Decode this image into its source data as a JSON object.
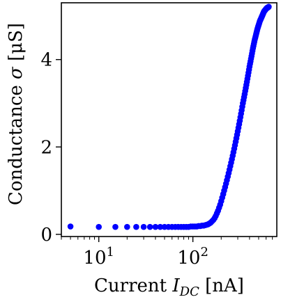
{
  "chart_data": {
    "type": "scatter",
    "xlabel": {
      "prefix": "Current ",
      "var": "I",
      "sub": "DC",
      "suffix": " [nA]"
    },
    "ylabel": {
      "prefix": "Conductance ",
      "var": "σ",
      "suffix": " [μS]"
    },
    "x_scale": "log",
    "xlim": [
      4,
      780
    ],
    "ylim": [
      -0.05,
      5.3
    ],
    "x_ticks": [
      {
        "value": 10,
        "base": "10",
        "exp": "1"
      },
      {
        "value": 100,
        "base": "10",
        "exp": "2"
      }
    ],
    "y_ticks": [
      {
        "value": 0,
        "label": "0"
      },
      {
        "value": 2,
        "label": "2"
      },
      {
        "value": 4,
        "label": "4"
      }
    ],
    "grid": false,
    "marker_color": "#0000ff",
    "series": [
      {
        "x": [
          5,
          10,
          15,
          20,
          25,
          30,
          35,
          40,
          45,
          50,
          55,
          60,
          65,
          70,
          75,
          80,
          85,
          90,
          95,
          100,
          105,
          110,
          115,
          120,
          125,
          130,
          135,
          140,
          145,
          150,
          155,
          160,
          165,
          170,
          175,
          180,
          185,
          190,
          195,
          200,
          205,
          210,
          215,
          220,
          225,
          230,
          235,
          240,
          245,
          250,
          255,
          260,
          265,
          270,
          275,
          280,
          285,
          290,
          295,
          300,
          305,
          310,
          315,
          320,
          325,
          330,
          335,
          340,
          345,
          350,
          355,
          360,
          365,
          370,
          375,
          380,
          385,
          390,
          395,
          400,
          405,
          410,
          415,
          420,
          425,
          430,
          435,
          440,
          445,
          450,
          455,
          460,
          465,
          470,
          475,
          480,
          485,
          490,
          495,
          500,
          505,
          510,
          515,
          520,
          525,
          530,
          535,
          540,
          545,
          550,
          555,
          560,
          565,
          570,
          575,
          580,
          585,
          590,
          595,
          600,
          605,
          610,
          615,
          620,
          625,
          630,
          635,
          640
        ],
        "y": [
          0.18,
          0.17,
          0.17,
          0.17,
          0.17,
          0.17,
          0.17,
          0.17,
          0.17,
          0.17,
          0.17,
          0.17,
          0.17,
          0.17,
          0.17,
          0.17,
          0.17,
          0.17,
          0.18,
          0.18,
          0.18,
          0.18,
          0.19,
          0.19,
          0.2,
          0.2,
          0.21,
          0.22,
          0.23,
          0.25,
          0.27,
          0.3,
          0.33,
          0.37,
          0.42,
          0.48,
          0.54,
          0.61,
          0.68,
          0.76,
          0.84,
          0.92,
          1.0,
          1.08,
          1.16,
          1.24,
          1.32,
          1.4,
          1.48,
          1.56,
          1.64,
          1.72,
          1.8,
          1.88,
          1.96,
          2.04,
          2.12,
          2.2,
          2.28,
          2.36,
          2.44,
          2.52,
          2.6,
          2.68,
          2.76,
          2.84,
          2.92,
          3.0,
          3.07,
          3.14,
          3.21,
          3.28,
          3.35,
          3.42,
          3.49,
          3.56,
          3.63,
          3.7,
          3.77,
          3.84,
          3.9,
          3.96,
          4.02,
          4.08,
          4.14,
          4.2,
          4.26,
          4.31,
          4.36,
          4.41,
          4.46,
          4.5,
          4.54,
          4.58,
          4.62,
          4.66,
          4.7,
          4.73,
          4.76,
          4.79,
          4.82,
          4.85,
          4.88,
          4.9,
          4.92,
          4.94,
          4.96,
          4.98,
          5.0,
          5.02,
          5.04,
          5.06,
          5.08,
          5.1,
          5.11,
          5.12,
          5.13,
          5.14,
          5.15,
          5.16,
          5.17,
          5.18,
          5.18,
          5.19,
          5.19,
          5.2,
          5.2,
          5.21
        ]
      }
    ]
  }
}
